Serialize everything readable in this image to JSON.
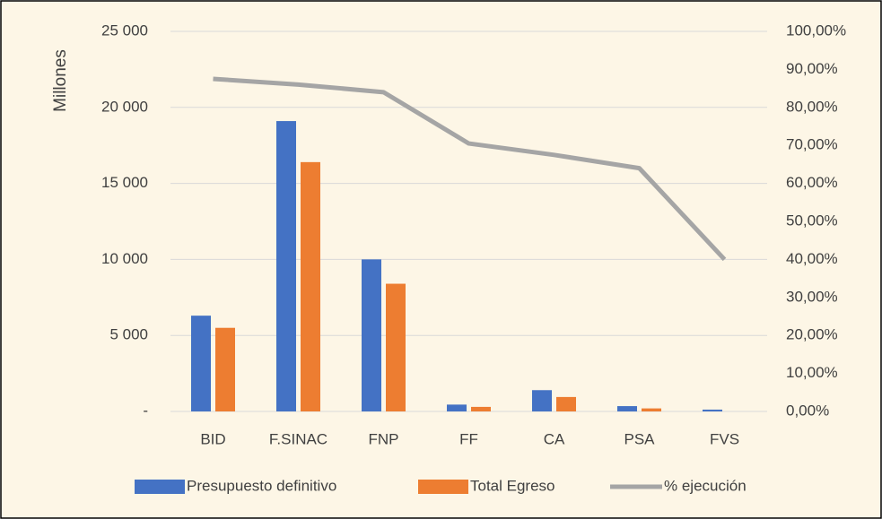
{
  "chart_data": {
    "type": "bar",
    "y_axis_label": "Millones",
    "categories": [
      "BID",
      "F.SINAC",
      "FNP",
      "FF",
      "CA",
      "PSA",
      "FVS"
    ],
    "series": [
      {
        "name": "Presupuesto definitivo",
        "type": "bar",
        "color": "#4472c4",
        "values": [
          6300,
          19100,
          10000,
          450,
          1400,
          350,
          120
        ]
      },
      {
        "name": "Total Egreso",
        "type": "bar",
        "color": "#ed7d31",
        "values": [
          5500,
          16400,
          8400,
          300,
          950,
          200,
          0
        ]
      },
      {
        "name": "% ejecución",
        "type": "line",
        "axis": "y2",
        "color": "#a5a5a5",
        "values": [
          87.5,
          86,
          84,
          70.5,
          67.5,
          64,
          40
        ]
      }
    ],
    "ylim": [
      0,
      25000
    ],
    "yticks": [
      {
        "value": 0,
        "label": "-"
      },
      {
        "value": 5000,
        "label": "5 000"
      },
      {
        "value": 10000,
        "label": "10 000"
      },
      {
        "value": 15000,
        "label": "15 000"
      },
      {
        "value": 20000,
        "label": "20 000"
      },
      {
        "value": 25000,
        "label": "25 000"
      }
    ],
    "y2lim": [
      0,
      100
    ],
    "y2ticks": [
      {
        "value": 0,
        "label": "0,00%"
      },
      {
        "value": 10,
        "label": "10,00%"
      },
      {
        "value": 20,
        "label": "20,00%"
      },
      {
        "value": 30,
        "label": "30,00%"
      },
      {
        "value": 40,
        "label": "40,00%"
      },
      {
        "value": 50,
        "label": "50,00%"
      },
      {
        "value": 60,
        "label": "60,00%"
      },
      {
        "value": 70,
        "label": "70,00%"
      },
      {
        "value": 80,
        "label": "80,00%"
      },
      {
        "value": 90,
        "label": "90,00%"
      },
      {
        "value": 100,
        "label": "100,00%"
      }
    ],
    "grid": true,
    "legend": "bottom"
  }
}
